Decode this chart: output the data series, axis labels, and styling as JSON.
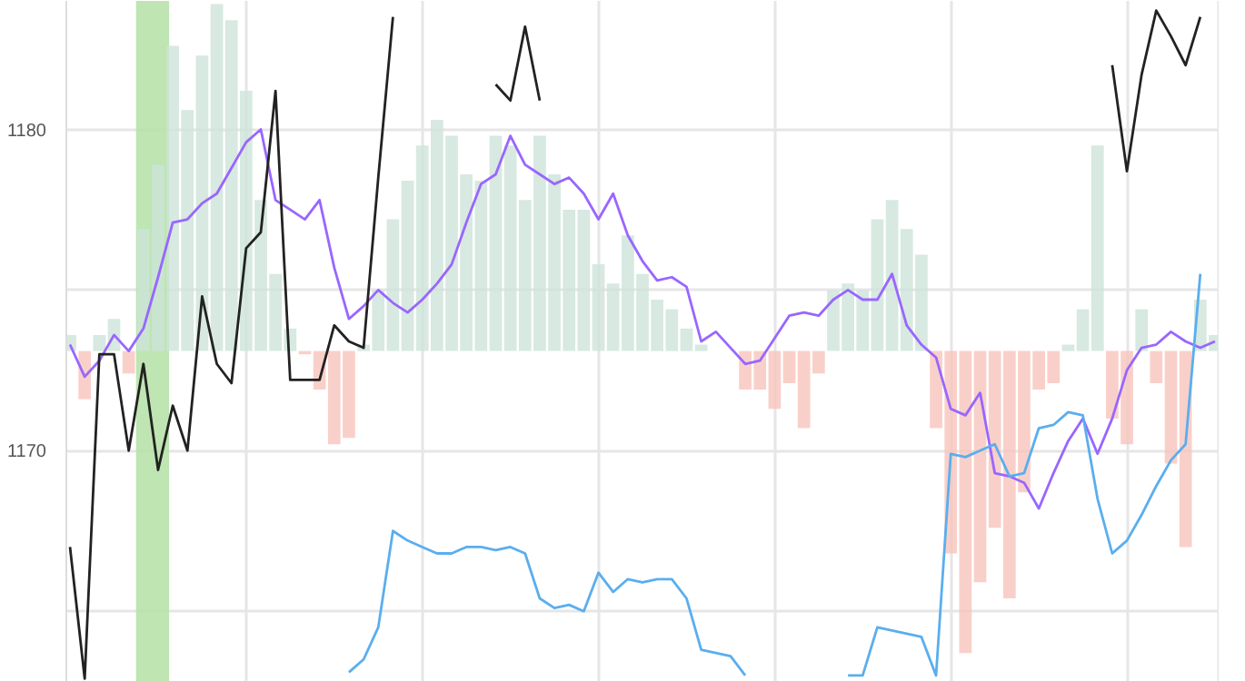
{
  "chart_data": {
    "type": "line",
    "categories": [
      null,
      null,
      null,
      null,
      null,
      null,
      null,
      null,
      null,
      null,
      null,
      null,
      null,
      null,
      null,
      null,
      null,
      null,
      null,
      null,
      null,
      null,
      null,
      null,
      null,
      null,
      null,
      null,
      null,
      null,
      null,
      null,
      null,
      null,
      null,
      null,
      null,
      null,
      null,
      null,
      null,
      null,
      null,
      null,
      null,
      null,
      null,
      null,
      null,
      null,
      null,
      null,
      null,
      null,
      null,
      null,
      null,
      null,
      null,
      null,
      null,
      null,
      null,
      null,
      null,
      null,
      null,
      null,
      null,
      null,
      null,
      null,
      null,
      null,
      null,
      null,
      null,
      null,
      null
    ],
    "ylim": [
      1162.8,
      1184.0
    ],
    "yticks": [
      {
        "value": 1165,
        "label": null
      },
      1170,
      {
        "value": 1175,
        "label": null
      },
      1180
    ],
    "grid": true,
    "series": [
      {
        "type": "bar",
        "base": [
          1173.1,
          1173.1,
          1173.1,
          1173.1,
          1173.1,
          1173.1,
          1173.1,
          1173.1,
          1173.1,
          1173.1,
          1173.1,
          1173.1,
          1173.1,
          1173.1,
          1173.1,
          1173.1,
          1173.1,
          1173.1,
          1173.1,
          1173.1,
          1173.1,
          1173.1,
          1173.1,
          1173.1,
          1173.1,
          1173.1,
          1173.1,
          1173.1,
          1173.1,
          1173.1,
          1173.1,
          1173.1,
          1173.1,
          1173.1,
          1173.1,
          1173.1,
          1173.1,
          1173.1,
          1173.1,
          1173.1,
          1173.1,
          1173.1,
          1173.1,
          1173.1,
          null,
          null,
          1173.1,
          1173.1,
          1173.1,
          1173.1,
          1173.1,
          1173.1,
          1173.1,
          1173.1,
          1173.1,
          1173.1,
          1173.1,
          1173.1,
          1173.1,
          1173.1,
          1173.1,
          1173.1,
          1173.1,
          1173.1,
          1173.1,
          1173.1,
          1173.1,
          1173.1,
          1173.1,
          1173.1,
          1173.1,
          1173.1,
          1173.1,
          1173.1,
          1173.1,
          1173.1,
          1173.1,
          1173.1,
          1173.1
        ],
        "values": [
          0.5,
          -1.5,
          0.5,
          1.0,
          -0.7,
          3.8,
          5.8,
          9.5,
          7.5,
          9.2,
          10.8,
          10.3,
          8.1,
          4.7,
          2.4,
          0.7,
          -0.1,
          -1.2,
          -2.9,
          -2.7,
          0.2,
          1.9,
          4.1,
          5.3,
          6.4,
          7.2,
          6.7,
          5.5,
          5.3,
          6.7,
          6.4,
          4.7,
          6.7,
          5.5,
          4.4,
          4.4,
          2.7,
          2.1,
          3.6,
          2.4,
          1.6,
          1.3,
          0.7,
          0.2,
          null,
          null,
          -1.2,
          -1.2,
          -1.8,
          -1.0,
          -2.4,
          -0.7,
          1.9,
          2.1,
          1.9,
          4.1,
          4.7,
          3.8,
          3.0,
          -2.4,
          -6.3,
          -9.4,
          -7.2,
          -5.5,
          -7.7,
          -4.4,
          -1.2,
          -1.0,
          0.2,
          1.3,
          6.4,
          -2.1,
          -2.9,
          1.3,
          -1.0,
          -3.5,
          -6.1,
          1.6,
          0.5
        ],
        "colors": [
          "#cde3da",
          "#f7c4bc",
          "#cde3da",
          "#cde3da",
          "#f7c4bc",
          "#cde3da",
          "#cde3da",
          "#cde3da",
          "#cde3da",
          "#cde3da",
          "#cde3da",
          "#cde3da",
          "#cde3da",
          "#cde3da",
          "#cde3da",
          "#cde3da",
          "#f7c4bc",
          "#f7c4bc",
          "#f7c4bc",
          "#f7c4bc",
          "#cde3da",
          "#cde3da",
          "#cde3da",
          "#cde3da",
          "#cde3da",
          "#cde3da",
          "#cde3da",
          "#cde3da",
          "#cde3da",
          "#cde3da",
          "#cde3da",
          "#cde3da",
          "#cde3da",
          "#cde3da",
          "#cde3da",
          "#cde3da",
          "#cde3da",
          "#cde3da",
          "#cde3da",
          "#cde3da",
          "#cde3da",
          "#cde3da",
          "#cde3da",
          "#cde3da",
          null,
          null,
          "#f7c4bc",
          "#f7c4bc",
          "#f7c4bc",
          "#f7c4bc",
          "#f7c4bc",
          "#f7c4bc",
          "#cde3da",
          "#cde3da",
          "#cde3da",
          "#cde3da",
          "#cde3da",
          "#cde3da",
          "#cde3da",
          "#f7c4bc",
          "#f7c4bc",
          "#f7c4bc",
          "#f7c4bc",
          "#f7c4bc",
          "#f7c4bc",
          "#f7c4bc",
          "#f7c4bc",
          "#f7c4bc",
          "#cde3da",
          "#cde3da",
          "#cde3da",
          "#f7c4bc",
          "#f7c4bc",
          "#cde3da",
          "#f7c4bc",
          "#f7c4bc",
          "#f7c4bc",
          "#cde3da",
          "#cde3da"
        ]
      },
      {
        "color": "#9966ff",
        "values": [
          1173.3,
          1172.3,
          1172.8,
          1173.6,
          1173.1,
          1173.8,
          1175.4,
          1177.1,
          1177.2,
          1177.7,
          1178.0,
          1178.8,
          1179.6,
          1180.0,
          1177.8,
          1177.5,
          1177.2,
          1177.8,
          1175.7,
          1174.1,
          1174.5,
          1175.0,
          1174.6,
          1174.3,
          1174.7,
          1175.2,
          1175.8,
          1177.1,
          1178.3,
          1178.6,
          1179.8,
          1178.9,
          1178.6,
          1178.3,
          1178.5,
          1178.0,
          1177.2,
          1178.0,
          1176.7,
          1175.9,
          1175.3,
          1175.4,
          1175.1,
          1173.4,
          1173.7,
          1173.2,
          1172.7,
          1172.8,
          1173.5,
          1174.2,
          1174.3,
          1174.2,
          1174.7,
          1175.0,
          1174.7,
          1174.7,
          1175.5,
          1173.9,
          1173.3,
          1172.9,
          1171.3,
          1171.1,
          1171.8,
          1169.3,
          1169.2,
          1169.0,
          1168.2,
          1169.3,
          1170.3,
          1171.0,
          1169.9,
          1171.0,
          1172.5,
          1173.2,
          1173.3,
          1173.7,
          1173.4,
          1173.2,
          1173.4
        ]
      },
      {
        "color": "#5aaeee",
        "values": [
          null,
          null,
          null,
          null,
          null,
          null,
          null,
          null,
          null,
          null,
          null,
          null,
          null,
          null,
          null,
          null,
          null,
          null,
          null,
          1163.1,
          1163.5,
          1164.5,
          1167.5,
          1167.2,
          1167.0,
          1166.8,
          1166.8,
          1167.0,
          1167.0,
          1166.9,
          1167.0,
          1166.8,
          1165.4,
          1165.1,
          1165.2,
          1165.0,
          1166.2,
          1165.6,
          1166.0,
          1165.9,
          1166.0,
          1166.0,
          1165.4,
          1163.8,
          1163.7,
          1163.6,
          1163.0,
          null,
          null,
          null,
          null,
          null,
          null,
          1163.0,
          1163.0,
          1164.5,
          1164.4,
          1164.3,
          1164.2,
          1163.0,
          1169.9,
          1169.8,
          1170.0,
          1170.2,
          1169.2,
          1169.3,
          1170.7,
          1170.8,
          1171.2,
          1171.1,
          1168.5,
          1166.8,
          1167.2,
          1168.0,
          1168.9,
          1169.7,
          1170.2,
          1175.5,
          null
        ]
      },
      {
        "color": "#222222",
        "values": [
          1167.0,
          1162.9,
          1173.0,
          1173.0,
          1170.0,
          1172.7,
          1169.4,
          1171.4,
          1170.0,
          1174.8,
          1172.7,
          1172.1,
          1176.3,
          1176.8,
          1181.2,
          1172.2,
          1172.2,
          1172.2,
          1173.9,
          1173.4,
          1173.2,
          1178.5,
          1183.5,
          null,
          null,
          null,
          null,
          null,
          null,
          1181.4,
          1180.9,
          1183.2,
          1180.9,
          null,
          null,
          null,
          null,
          null,
          null,
          null,
          null,
          null,
          null,
          null,
          null,
          null,
          null,
          null,
          null,
          null,
          null,
          null,
          null,
          null,
          null,
          null,
          null,
          null,
          null,
          null,
          null,
          null,
          null,
          null,
          null,
          null,
          null,
          null,
          null,
          null,
          null,
          1182.0,
          1178.7,
          1181.7,
          1183.7,
          1182.9,
          1182.0,
          1183.5,
          null
        ]
      }
    ]
  }
}
